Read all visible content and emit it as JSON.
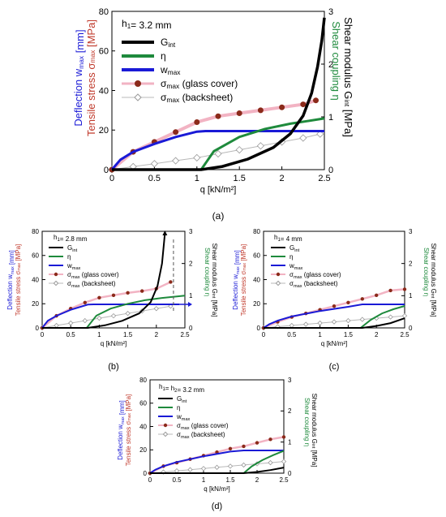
{
  "figure": {
    "colors": {
      "g_int": "#000000",
      "eta": "#1e8a3c",
      "w_max": "#1a1ad6",
      "sigma_glass": "#8b2a1a",
      "sigma_glass_line": "#f2b3c3",
      "sigma_back": "#b8b8b8",
      "red_label": "#c0392b"
    }
  },
  "chart_data": [
    {
      "panel": "a",
      "type": "line",
      "caption": "(a)",
      "header": "h",
      "header_sub": "1",
      "header_rest": "= 3.2 mm",
      "xlabel": "q [kN/m²]",
      "xlim": [
        0,
        2.5
      ],
      "xticks": [
        "0",
        "0.5",
        "1",
        "1.5",
        "2",
        "2.5"
      ],
      "ylim_left": [
        0,
        80
      ],
      "yticks_left": [
        "0",
        "20",
        "40",
        "60",
        "80"
      ],
      "ylim_right": [
        0,
        3
      ],
      "yticks_right": [
        "0",
        "1",
        "2",
        "3"
      ],
      "legend": [
        "G_int",
        "η",
        "w_max",
        "σ_max (glass cover)",
        "σ_max (backsheet)"
      ],
      "series": [
        {
          "name": "G_int",
          "axis": "right",
          "x": [
            0,
            1.05,
            1.3,
            1.6,
            1.9,
            2.1,
            2.25,
            2.35,
            2.42,
            2.47,
            2.5
          ],
          "y": [
            0,
            0,
            0.06,
            0.2,
            0.42,
            0.68,
            1.02,
            1.45,
            1.95,
            2.45,
            2.88
          ]
        },
        {
          "name": "η",
          "axis": "right",
          "x": [
            0,
            1.05,
            1.2,
            1.5,
            1.8,
            2.1,
            2.3,
            2.5
          ],
          "y": [
            0,
            0,
            0.35,
            0.62,
            0.77,
            0.87,
            0.92,
            0.97
          ]
        },
        {
          "name": "w_max",
          "axis": "left",
          "x": [
            0,
            0.1,
            0.25,
            0.5,
            0.75,
            1.0,
            1.1,
            1.5,
            2.0,
            2.5
          ],
          "y": [
            0,
            5,
            9,
            13,
            16.5,
            19.2,
            19.5,
            19.5,
            19.5,
            19.5
          ]
        },
        {
          "name": "σ_max (glass cover)",
          "axis": "left",
          "x": [
            0,
            0.25,
            0.5,
            0.75,
            1.0,
            1.25,
            1.5,
            1.75,
            2.0,
            2.25,
            2.4
          ],
          "y": [
            0,
            9,
            14,
            19,
            24,
            27,
            28.5,
            30,
            31.5,
            33,
            35
          ]
        },
        {
          "name": "σ_max (backsheet)",
          "axis": "left",
          "x": [
            0,
            0.25,
            0.5,
            0.75,
            1.0,
            1.25,
            1.5,
            1.75,
            2.0,
            2.25,
            2.45
          ],
          "y": [
            0,
            1.5,
            3,
            4.5,
            6,
            8,
            10,
            12,
            14,
            16,
            18
          ]
        }
      ]
    },
    {
      "panel": "b",
      "type": "line",
      "caption": "(b)",
      "header": "h",
      "header_sub": "1",
      "header_rest": "= 2.8 mm",
      "xlabel": "q  [kN/m²]",
      "xlim": [
        0,
        2.5
      ],
      "xticks": [
        "0",
        "0.5",
        "1",
        "1.5",
        "2",
        "2.5"
      ],
      "ylim_left": [
        0,
        80
      ],
      "yticks_left": [
        "0",
        "20",
        "40",
        "60",
        "80"
      ],
      "ylim_right": [
        0,
        3
      ],
      "yticks_right": [
        "0",
        "1",
        "2",
        "3"
      ],
      "legend": [
        "G_int",
        "η",
        "w_max",
        "σ_max (glass cover)",
        "σ_max (backsheet)"
      ],
      "series": [
        {
          "name": "G_int",
          "axis": "right",
          "x": [
            0,
            0.8,
            1.1,
            1.4,
            1.7,
            1.9,
            2.02,
            2.1,
            2.15
          ],
          "y": [
            0,
            0,
            0.08,
            0.22,
            0.45,
            0.8,
            1.3,
            2.0,
            2.95
          ]
        },
        {
          "name": "η",
          "axis": "right",
          "x": [
            0,
            0.78,
            0.95,
            1.2,
            1.5,
            1.8,
            2.1,
            2.5
          ],
          "y": [
            0,
            0,
            0.38,
            0.6,
            0.75,
            0.86,
            0.93,
            1.0
          ]
        },
        {
          "name": "w_max",
          "axis": "left",
          "x": [
            0,
            0.1,
            0.25,
            0.5,
            0.8,
            0.9,
            1.5,
            2.0,
            2.4
          ],
          "y": [
            0,
            6,
            10,
            15,
            19.3,
            19.5,
            19.5,
            19.5,
            19.5
          ]
        },
        {
          "name": "σ_max (glass cover)",
          "axis": "left",
          "x": [
            0,
            0.25,
            0.5,
            0.75,
            1.0,
            1.25,
            1.5,
            1.75,
            2.0,
            2.25
          ],
          "y": [
            0,
            10,
            16,
            21,
            25,
            27,
            29,
            30.5,
            32.5,
            38
          ]
        },
        {
          "name": "σ_max (backsheet)",
          "axis": "left",
          "x": [
            0,
            0.25,
            0.5,
            0.75,
            1.0,
            1.25,
            1.5,
            1.75,
            2.0,
            2.25
          ],
          "y": [
            0,
            2,
            4,
            6,
            8,
            10,
            12,
            14,
            16,
            18
          ]
        }
      ]
    },
    {
      "panel": "c",
      "type": "line",
      "caption": "(c)",
      "header": "h",
      "header_sub": "1",
      "header_rest": "= 4 mm",
      "xlabel": "q  [kN/m²]",
      "xlim": [
        0,
        2.5
      ],
      "xticks": [
        "0",
        "0.5",
        "1",
        "1.5",
        "2",
        "2.5"
      ],
      "ylim_left": [
        0,
        80
      ],
      "yticks_left": [
        "0",
        "20",
        "40",
        "60",
        "80"
      ],
      "ylim_right": [
        0,
        3
      ],
      "yticks_right": [
        "0",
        "1",
        "2",
        "3"
      ],
      "legend": [
        "G_int",
        "η",
        "w_max",
        "σ_max (glass cover)",
        "σ_max (backsheet)"
      ],
      "series": [
        {
          "name": "G_int",
          "axis": "right",
          "x": [
            0,
            1.75,
            2.0,
            2.25,
            2.5
          ],
          "y": [
            0,
            0,
            0.06,
            0.15,
            0.3
          ]
        },
        {
          "name": "η",
          "axis": "right",
          "x": [
            0,
            1.72,
            1.9,
            2.1,
            2.3,
            2.5
          ],
          "y": [
            0,
            0,
            0.25,
            0.45,
            0.58,
            0.68
          ]
        },
        {
          "name": "w_max",
          "axis": "left",
          "x": [
            0,
            0.1,
            0.25,
            0.5,
            1.0,
            1.5,
            1.75,
            2.0,
            2.5
          ],
          "y": [
            0,
            3,
            6,
            9.5,
            14,
            17.5,
            19.5,
            19.5,
            19.5
          ]
        },
        {
          "name": "σ_max (glass cover)",
          "axis": "left",
          "x": [
            0,
            0.25,
            0.5,
            0.75,
            1.0,
            1.25,
            1.5,
            1.75,
            2.0,
            2.25,
            2.5
          ],
          "y": [
            0,
            5,
            9,
            12,
            15,
            18,
            21,
            24,
            27,
            31,
            32
          ]
        },
        {
          "name": "σ_max (backsheet)",
          "axis": "left",
          "x": [
            0,
            0.25,
            0.5,
            0.75,
            1.0,
            1.25,
            1.5,
            1.75,
            2.0,
            2.25,
            2.5
          ],
          "y": [
            0,
            1,
            2,
            3,
            4,
            5,
            6,
            7,
            8,
            9,
            10
          ]
        }
      ]
    },
    {
      "panel": "d",
      "type": "line",
      "caption": "(d)",
      "header": "h",
      "header_sub": "1",
      "header_rest": "= h",
      "header_sub2": "2",
      "header_rest2": "= 3.2 mm",
      "xlabel": "q  [kN/m²]",
      "xlim": [
        0,
        2.5
      ],
      "xticks": [
        "0",
        "0.5",
        "1",
        "1.5",
        "2",
        "2.5"
      ],
      "ylim_left": [
        0,
        80
      ],
      "yticks_left": [
        "0",
        "20",
        "40",
        "60",
        "80"
      ],
      "ylim_right": [
        0,
        3
      ],
      "yticks_right": [
        "0",
        "1",
        "2",
        "3"
      ],
      "legend": [
        "G_int",
        "η",
        "w_max",
        "σ_max (glass cover)",
        "σ_max (backsheet)"
      ],
      "series": [
        {
          "name": "G_int",
          "axis": "right",
          "x": [
            0,
            1.75,
            2.0,
            2.25,
            2.5
          ],
          "y": [
            0,
            0,
            0.04,
            0.1,
            0.18
          ]
        },
        {
          "name": "η",
          "axis": "right",
          "x": [
            0,
            1.75,
            1.9,
            2.1,
            2.3,
            2.5
          ],
          "y": [
            0,
            0,
            0.22,
            0.42,
            0.58,
            0.72
          ]
        },
        {
          "name": "w_max",
          "axis": "left",
          "x": [
            0,
            0.1,
            0.25,
            0.5,
            1.0,
            1.5,
            1.75,
            2.0,
            2.5
          ],
          "y": [
            0,
            3,
            6,
            9.5,
            14.5,
            18.5,
            19.5,
            19.5,
            19.5
          ]
        },
        {
          "name": "σ_max (glass cover)",
          "axis": "left",
          "x": [
            0,
            0.25,
            0.5,
            0.75,
            1.0,
            1.25,
            1.5,
            1.75,
            2.0,
            2.25,
            2.5
          ],
          "y": [
            0,
            6,
            9,
            12,
            15,
            18,
            21,
            23,
            26,
            29,
            31
          ]
        },
        {
          "name": "σ_max (backsheet)",
          "axis": "left",
          "x": [
            0,
            0.25,
            0.5,
            0.75,
            1.0,
            1.25,
            1.5,
            1.75,
            2.0,
            2.25,
            2.5
          ],
          "y": [
            0,
            1,
            2,
            3,
            4,
            5,
            6,
            7,
            8,
            9,
            10
          ]
        }
      ]
    }
  ]
}
